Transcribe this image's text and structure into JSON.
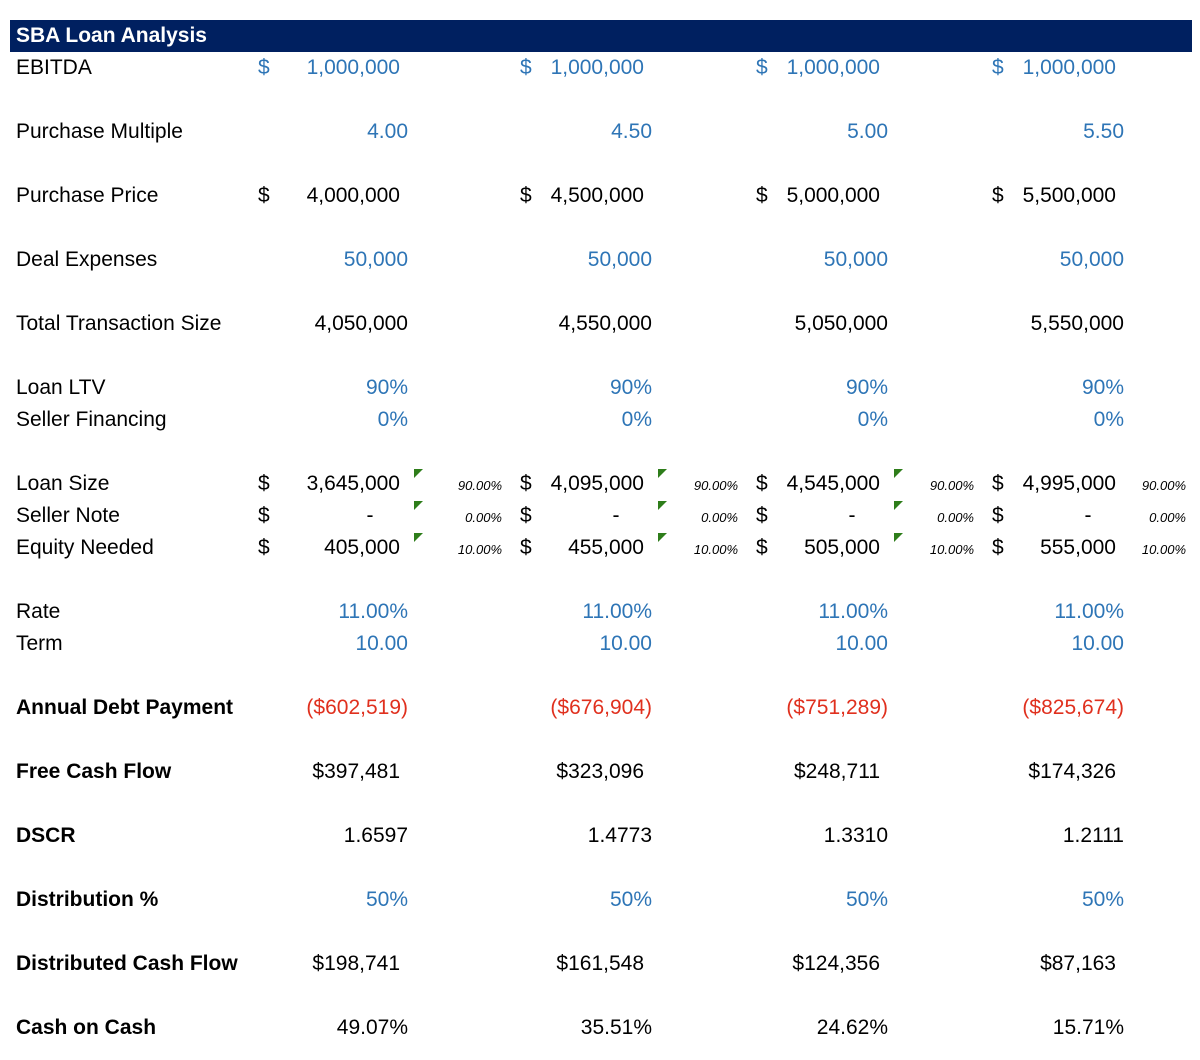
{
  "title": "SBA Loan Analysis",
  "currency_symbol": "$",
  "rows": {
    "ebitda": {
      "label": "EBITDA",
      "values": [
        "1,000,000",
        "1,000,000",
        "1,000,000",
        "1,000,000"
      ]
    },
    "purchase_multiple": {
      "label": "Purchase Multiple",
      "values": [
        "4.00",
        "4.50",
        "5.00",
        "5.50"
      ]
    },
    "purchase_price": {
      "label": "Purchase Price",
      "values": [
        "4,000,000",
        "4,500,000",
        "5,000,000",
        "5,500,000"
      ]
    },
    "deal_expenses": {
      "label": "Deal Expenses",
      "values": [
        "50,000",
        "50,000",
        "50,000",
        "50,000"
      ]
    },
    "total_transaction": {
      "label": "Total Transaction Size",
      "values": [
        "4,050,000",
        "4,550,000",
        "5,050,000",
        "5,550,000"
      ]
    },
    "loan_ltv": {
      "label": "Loan LTV",
      "values": [
        "90%",
        "90%",
        "90%",
        "90%"
      ]
    },
    "seller_financing": {
      "label": "Seller Financing",
      "values": [
        "0%",
        "0%",
        "0%",
        "0%"
      ]
    },
    "loan_size": {
      "label": "Loan Size",
      "values": [
        "3,645,000",
        "4,095,000",
        "4,545,000",
        "4,995,000"
      ],
      "pcts": [
        "90.00%",
        "90.00%",
        "90.00%",
        "90.00%"
      ]
    },
    "seller_note": {
      "label": "Seller Note",
      "values": [
        "-",
        "-",
        "-",
        "-"
      ],
      "pcts": [
        "0.00%",
        "0.00%",
        "0.00%",
        "0.00%"
      ]
    },
    "equity_needed": {
      "label": "Equity Needed",
      "values": [
        "405,000",
        "455,000",
        "505,000",
        "555,000"
      ],
      "pcts": [
        "10.00%",
        "10.00%",
        "10.00%",
        "10.00%"
      ]
    },
    "rate": {
      "label": "Rate",
      "values": [
        "11.00%",
        "11.00%",
        "11.00%",
        "11.00%"
      ]
    },
    "term": {
      "label": "Term",
      "values": [
        "10.00",
        "10.00",
        "10.00",
        "10.00"
      ]
    },
    "annual_debt_payment": {
      "label": "Annual Debt Payment",
      "values": [
        "($602,519)",
        "($676,904)",
        "($751,289)",
        "($825,674)"
      ]
    },
    "free_cash_flow": {
      "label": "Free Cash Flow",
      "values": [
        "$397,481",
        "$323,096",
        "$248,711",
        "$174,326"
      ]
    },
    "dscr": {
      "label": "DSCR",
      "values": [
        "1.6597",
        "1.4773",
        "1.3310",
        "1.2111"
      ]
    },
    "distribution_pct": {
      "label": "Distribution %",
      "values": [
        "50%",
        "50%",
        "50%",
        "50%"
      ]
    },
    "distributed_cash_flow": {
      "label": "Distributed Cash Flow",
      "values": [
        "$198,741",
        "$161,548",
        "$124,356",
        "$87,163"
      ]
    },
    "cash_on_cash": {
      "label": "Cash on Cash",
      "values": [
        "49.07%",
        "35.51%",
        "24.62%",
        "15.71%"
      ]
    }
  },
  "colors": {
    "header_bg": "#002060",
    "input_blue": "#2e75b6",
    "negative_red": "#e0301e",
    "comment_flag": "#2e7d1a"
  }
}
